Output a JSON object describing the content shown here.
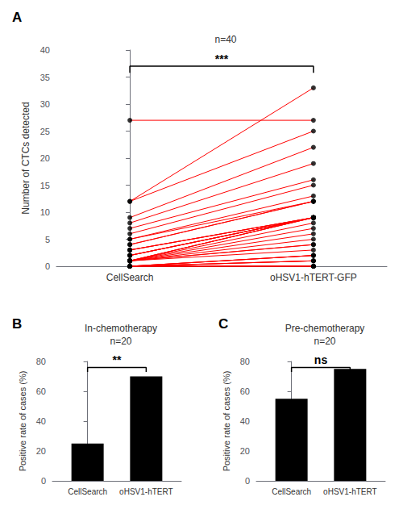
{
  "chart_data": [
    {
      "type": "slope",
      "panel": "A",
      "title": "n=40",
      "ylabel": "Number of CTCs detected",
      "categories": [
        "CellSearch",
        "oHSV1-hTERT-GFP"
      ],
      "values": [
        [
          27,
          12,
          12,
          9,
          8,
          7,
          6,
          5,
          5,
          4,
          4,
          3,
          3,
          3,
          2,
          2,
          2,
          2,
          1,
          1,
          1,
          1,
          1,
          1,
          1,
          1,
          1,
          1,
          0,
          0,
          0,
          0,
          0,
          0,
          0,
          0,
          0,
          0,
          0,
          0
        ],
        [
          27,
          33,
          25,
          22,
          19,
          16,
          15,
          13,
          12,
          12,
          12,
          9,
          9,
          9,
          9,
          9,
          9,
          9,
          9,
          9,
          9,
          8,
          7,
          6,
          5,
          4,
          4,
          3,
          2,
          2,
          2,
          1,
          1,
          1,
          0,
          0,
          0,
          0,
          0,
          0
        ]
      ],
      "color": "#000000",
      "line_color": "#FF0000",
      "ylim": [
        0,
        40
      ],
      "yticks": [
        0,
        5,
        10,
        15,
        20,
        25,
        30,
        35,
        40
      ],
      "grid": false,
      "significance": {
        "text": "***",
        "y": 37.0,
        "tick_len": 1.2
      }
    },
    {
      "type": "bar",
      "panel": "B",
      "title": "In-chemotherapy\nn=20",
      "ylabel": "Positive rate of cases (%)",
      "categories": [
        "CellSearch",
        "oHSV1-hTERT"
      ],
      "values": [
        25,
        70
      ],
      "color": "#000000",
      "ylim": [
        0,
        80
      ],
      "yticks": [
        0,
        20,
        40,
        60,
        80
      ],
      "grid": false,
      "significance": {
        "text": "**",
        "y": 76,
        "tick_len": 3
      }
    },
    {
      "type": "bar",
      "panel": "C",
      "title": "Pre-chemotherapy\nn=20",
      "ylabel": "Positive rate of cases (%)",
      "categories": [
        "CellSearch",
        "oHSV1-hTERT"
      ],
      "values": [
        55,
        75
      ],
      "color": "#000000",
      "ylim": [
        0,
        80
      ],
      "yticks": [
        0,
        20,
        40,
        60,
        80
      ],
      "grid": false,
      "significance": {
        "text": "ns",
        "y": 76,
        "tick_len": 3
      }
    }
  ]
}
